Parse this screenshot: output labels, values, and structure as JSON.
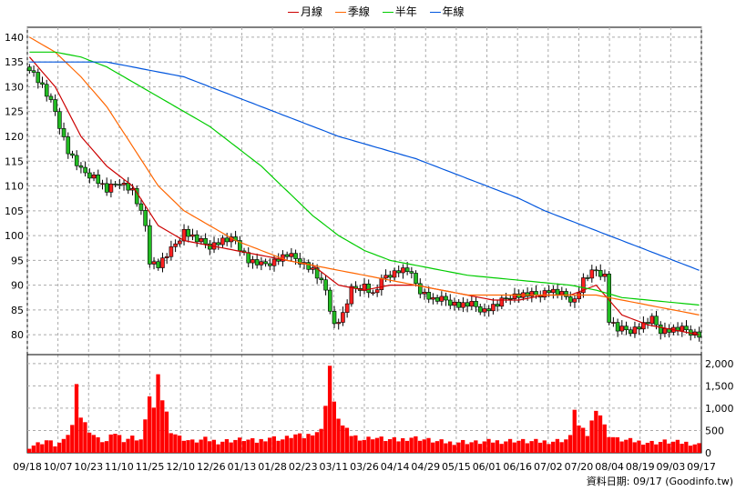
{
  "chart_data": [
    {
      "type": "candlestick",
      "title": "",
      "legend": [
        {
          "name": "月線",
          "color": "#cc0000"
        },
        {
          "name": "季線",
          "color": "#ff6600"
        },
        {
          "name": "半年",
          "color": "#00cc00"
        },
        {
          "name": "年線",
          "color": "#0055dd"
        }
      ],
      "ylim": [
        76,
        142
      ],
      "y_ticks": [
        80,
        85,
        90,
        95,
        100,
        105,
        110,
        115,
        120,
        125,
        130,
        135,
        140
      ],
      "x_tick_labels": [
        "09/18",
        "10/07",
        "10/23",
        "11/10",
        "11/25",
        "12/10",
        "12/26",
        "01/13",
        "01/28",
        "02/23",
        "03/11",
        "03/26",
        "04/14",
        "04/29",
        "05/15",
        "06/01",
        "06/16",
        "07/02",
        "07/20",
        "08/04",
        "08/19",
        "09/03",
        "09/17"
      ],
      "close_points": [
        [
          0,
          134
        ],
        [
          3,
          130
        ],
        [
          6,
          125
        ],
        [
          9,
          117
        ],
        [
          12,
          113
        ],
        [
          15,
          112
        ],
        [
          18,
          109
        ],
        [
          21,
          111
        ],
        [
          24,
          109
        ],
        [
          27,
          102
        ],
        [
          28,
          95
        ],
        [
          30,
          94
        ],
        [
          33,
          97
        ],
        [
          36,
          101
        ],
        [
          39,
          99
        ],
        [
          42,
          98
        ],
        [
          45,
          99
        ],
        [
          48,
          99
        ],
        [
          51,
          95
        ],
        [
          54,
          94
        ],
        [
          57,
          95
        ],
        [
          60,
          96
        ],
        [
          63,
          95
        ],
        [
          66,
          93
        ],
        [
          69,
          89
        ],
        [
          71,
          82
        ],
        [
          73,
          84
        ],
        [
          75,
          89
        ],
        [
          78,
          90
        ],
        [
          80,
          88
        ],
        [
          83,
          92
        ],
        [
          86,
          93
        ],
        [
          88,
          93
        ],
        [
          91,
          89
        ],
        [
          94,
          87
        ],
        [
          97,
          87
        ],
        [
          100,
          86
        ],
        [
          103,
          86
        ],
        [
          106,
          85
        ],
        [
          109,
          86
        ],
        [
          112,
          88
        ],
        [
          115,
          88
        ],
        [
          118,
          88
        ],
        [
          121,
          89
        ],
        [
          124,
          88
        ],
        [
          127,
          87
        ],
        [
          129,
          91
        ],
        [
          132,
          93
        ],
        [
          134,
          92
        ],
        [
          135,
          83
        ],
        [
          137,
          81
        ],
        [
          140,
          81
        ],
        [
          143,
          82
        ],
        [
          145,
          83
        ],
        [
          147,
          81
        ],
        [
          150,
          81
        ],
        [
          153,
          81
        ],
        [
          156,
          80
        ]
      ],
      "moving_averages": {
        "月線": [
          [
            0,
            136
          ],
          [
            6,
            130
          ],
          [
            12,
            120
          ],
          [
            18,
            114
          ],
          [
            24,
            110
          ],
          [
            30,
            102
          ],
          [
            36,
            99
          ],
          [
            42,
            98
          ],
          [
            48,
            97
          ],
          [
            54,
            96
          ],
          [
            60,
            95
          ],
          [
            66,
            94
          ],
          [
            72,
            90
          ],
          [
            78,
            89
          ],
          [
            84,
            90
          ],
          [
            90,
            90
          ],
          [
            96,
            89
          ],
          [
            102,
            88
          ],
          [
            108,
            87
          ],
          [
            114,
            87
          ],
          [
            120,
            88
          ],
          [
            126,
            88
          ],
          [
            132,
            90
          ],
          [
            138,
            84
          ],
          [
            144,
            82
          ],
          [
            150,
            81
          ],
          [
            156,
            80
          ]
        ],
        "季線": [
          [
            0,
            140
          ],
          [
            6,
            137
          ],
          [
            12,
            132
          ],
          [
            18,
            126
          ],
          [
            24,
            118
          ],
          [
            30,
            110
          ],
          [
            36,
            105
          ],
          [
            42,
            102
          ],
          [
            48,
            99
          ],
          [
            54,
            97
          ],
          [
            60,
            95
          ],
          [
            66,
            94
          ],
          [
            72,
            93
          ],
          [
            78,
            92
          ],
          [
            84,
            91
          ],
          [
            90,
            90
          ],
          [
            96,
            89
          ],
          [
            102,
            88
          ],
          [
            108,
            88
          ],
          [
            114,
            88
          ],
          [
            120,
            88
          ],
          [
            126,
            88
          ],
          [
            132,
            88
          ],
          [
            138,
            87
          ],
          [
            144,
            86
          ],
          [
            150,
            85
          ],
          [
            156,
            84
          ]
        ],
        "半年": [
          [
            0,
            137
          ],
          [
            6,
            137
          ],
          [
            12,
            136
          ],
          [
            18,
            134
          ],
          [
            24,
            131
          ],
          [
            30,
            128
          ],
          [
            36,
            125
          ],
          [
            42,
            122
          ],
          [
            48,
            118
          ],
          [
            54,
            114
          ],
          [
            60,
            109
          ],
          [
            66,
            104
          ],
          [
            72,
            100
          ],
          [
            78,
            97
          ],
          [
            84,
            95
          ],
          [
            90,
            94
          ],
          [
            96,
            93
          ],
          [
            102,
            92
          ],
          [
            108,
            91.5
          ],
          [
            114,
            91
          ],
          [
            120,
            90.5
          ],
          [
            126,
            90
          ],
          [
            132,
            89
          ],
          [
            138,
            87.5
          ],
          [
            144,
            87
          ],
          [
            150,
            86.5
          ],
          [
            156,
            86
          ]
        ],
        "年線": [
          [
            0,
            135
          ],
          [
            6,
            135
          ],
          [
            12,
            135
          ],
          [
            18,
            135
          ],
          [
            24,
            134
          ],
          [
            30,
            133
          ],
          [
            36,
            132
          ],
          [
            42,
            130
          ],
          [
            48,
            128
          ],
          [
            54,
            126
          ],
          [
            60,
            124
          ],
          [
            66,
            122
          ],
          [
            72,
            120
          ],
          [
            78,
            118.5
          ],
          [
            84,
            117
          ],
          [
            90,
            115.5
          ],
          [
            96,
            113.5
          ],
          [
            102,
            111.5
          ],
          [
            108,
            109.5
          ],
          [
            114,
            107.5
          ],
          [
            120,
            105
          ],
          [
            126,
            103
          ],
          [
            132,
            101
          ],
          [
            138,
            99
          ],
          [
            144,
            97
          ],
          [
            150,
            95
          ],
          [
            156,
            93
          ]
        ]
      }
    },
    {
      "type": "bar",
      "title": "",
      "ylim": [
        0,
        2200
      ],
      "y_ticks": [
        "0",
        "500",
        "1,000",
        "1,500",
        "2,000"
      ],
      "y_tick_values": [
        0,
        500,
        1000,
        1500,
        2000
      ],
      "volume_points": [
        [
          0,
          150
        ],
        [
          2,
          200
        ],
        [
          4,
          280
        ],
        [
          6,
          180
        ],
        [
          8,
          250
        ],
        [
          10,
          600
        ],
        [
          11,
          1600
        ],
        [
          12,
          800
        ],
        [
          14,
          500
        ],
        [
          16,
          300
        ],
        [
          18,
          250
        ],
        [
          20,
          450
        ],
        [
          22,
          300
        ],
        [
          24,
          350
        ],
        [
          26,
          300
        ],
        [
          27,
          700
        ],
        [
          28,
          1300
        ],
        [
          29,
          1000
        ],
        [
          30,
          1700
        ],
        [
          31,
          1200
        ],
        [
          32,
          900
        ],
        [
          33,
          500
        ],
        [
          35,
          350
        ],
        [
          38,
          250
        ],
        [
          41,
          300
        ],
        [
          44,
          250
        ],
        [
          47,
          280
        ],
        [
          50,
          300
        ],
        [
          53,
          250
        ],
        [
          56,
          350
        ],
        [
          59,
          300
        ],
        [
          62,
          400
        ],
        [
          64,
          350
        ],
        [
          66,
          450
        ],
        [
          68,
          500
        ],
        [
          69,
          1100
        ],
        [
          70,
          1950
        ],
        [
          71,
          1100
        ],
        [
          72,
          800
        ],
        [
          73,
          600
        ],
        [
          75,
          400
        ],
        [
          78,
          300
        ],
        [
          80,
          350
        ],
        [
          83,
          300
        ],
        [
          86,
          280
        ],
        [
          89,
          350
        ],
        [
          92,
          300
        ],
        [
          95,
          250
        ],
        [
          98,
          230
        ],
        [
          101,
          250
        ],
        [
          104,
          230
        ],
        [
          107,
          250
        ],
        [
          110,
          260
        ],
        [
          113,
          280
        ],
        [
          116,
          250
        ],
        [
          119,
          250
        ],
        [
          122,
          260
        ],
        [
          125,
          300
        ],
        [
          126,
          350
        ],
        [
          127,
          1000
        ],
        [
          128,
          600
        ],
        [
          130,
          400
        ],
        [
          131,
          700
        ],
        [
          132,
          1000
        ],
        [
          133,
          850
        ],
        [
          134,
          600
        ],
        [
          135,
          400
        ],
        [
          137,
          300
        ],
        [
          139,
          280
        ],
        [
          142,
          250
        ],
        [
          145,
          230
        ],
        [
          148,
          250
        ],
        [
          151,
          230
        ],
        [
          154,
          220
        ],
        [
          156,
          180
        ]
      ]
    }
  ],
  "footer": {
    "source": "資料日期: 09/17  (Goodinfo.tw)"
  }
}
